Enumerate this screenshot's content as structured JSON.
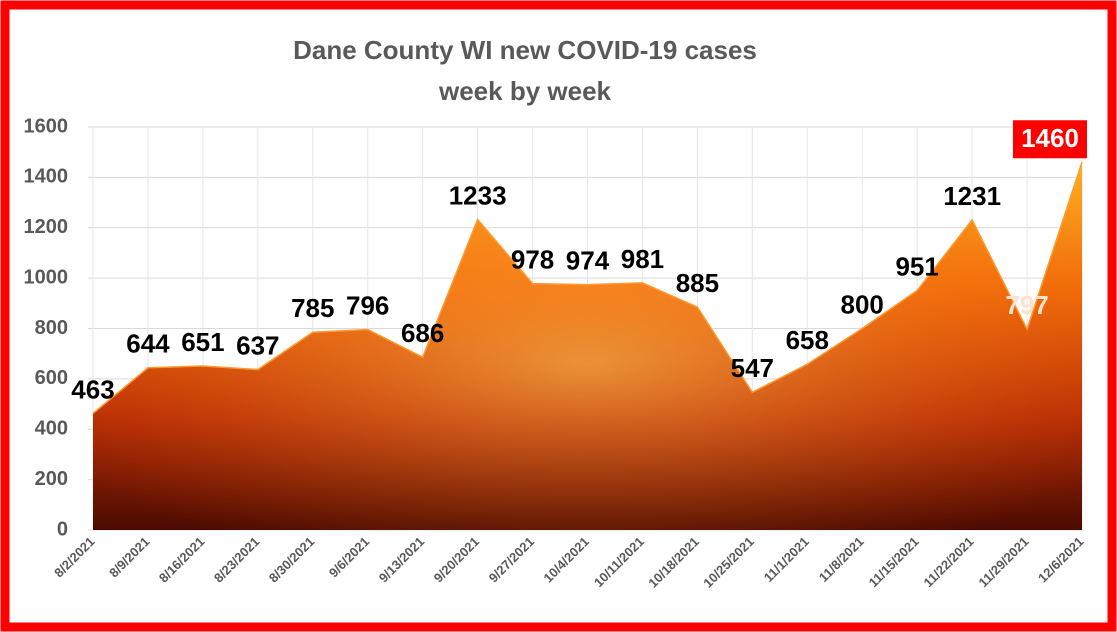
{
  "chart_data": {
    "type": "area",
    "title": [
      "Dane County WI new COVID-19 cases",
      "week by week"
    ],
    "categories": [
      "8/2/2021",
      "8/9/2021",
      "8/16/2021",
      "8/23/2021",
      "8/30/2021",
      "9/6/2021",
      "9/13/2021",
      "9/20/2021",
      "9/27/2021",
      "10/4/2021",
      "10/11/2021",
      "10/18/2021",
      "10/25/2021",
      "11/1/2021",
      "11/8/2021",
      "11/15/2021",
      "11/22/2021",
      "11/29/2021",
      "12/6/2021"
    ],
    "values": [
      463,
      644,
      651,
      637,
      785,
      796,
      686,
      1233,
      978,
      974,
      981,
      885,
      547,
      658,
      800,
      951,
      1231,
      797,
      1460
    ],
    "label_colors": [
      "#000000",
      "#000000",
      "#000000",
      "#000000",
      "#000000",
      "#000000",
      "#000000",
      "#000000",
      "#000000",
      "#000000",
      "#000000",
      "#000000",
      "#000000",
      "#000000",
      "#000000",
      "#000000",
      "#000000",
      "#fde3cf",
      "#ffffff"
    ],
    "label_backgrounds": [
      null,
      null,
      null,
      null,
      null,
      null,
      null,
      null,
      null,
      null,
      null,
      null,
      null,
      null,
      null,
      null,
      null,
      null,
      "#ff0000"
    ],
    "ylim": [
      0,
      1600
    ],
    "yticks": [
      0,
      200,
      400,
      600,
      800,
      1000,
      1200,
      1400,
      1600
    ],
    "grid": true
  }
}
